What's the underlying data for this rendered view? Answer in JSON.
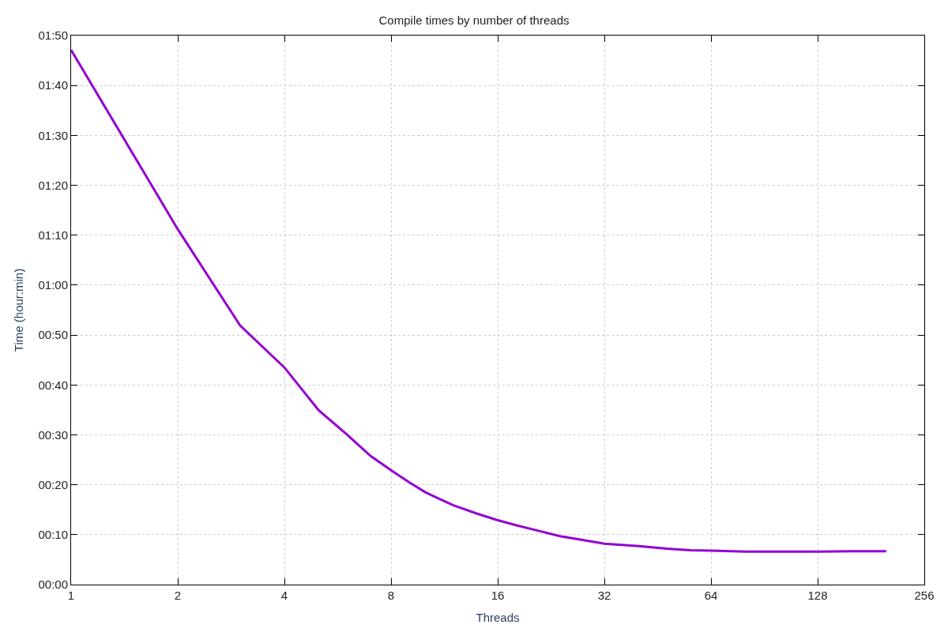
{
  "chart_data": {
    "type": "line",
    "title": "Compile times by number of threads",
    "xlabel": "Threads",
    "ylabel": "Time (hour:min)",
    "x": [
      1,
      2,
      3,
      4,
      5,
      6,
      7,
      8,
      9,
      10,
      11,
      12,
      14,
      16,
      18,
      20,
      24,
      28,
      32,
      40,
      48,
      56,
      64,
      80,
      96,
      128,
      160,
      200
    ],
    "series": [
      {
        "color": "#9400d3",
        "values": [
          107.1,
          71.2,
          51.9,
          43.5,
          34.9,
          30.1,
          25.8,
          22.9,
          20.5,
          18.5,
          17.1,
          15.9,
          14.2,
          12.9,
          11.9,
          11.1,
          9.7,
          8.9,
          8.2,
          7.7,
          7.2,
          6.9,
          6.8,
          6.6,
          6.6,
          6.6,
          6.7,
          6.7
        ]
      }
    ],
    "log": "x",
    "xlim": [
      1,
      256
    ],
    "xticks": [
      1,
      2,
      4,
      8,
      16,
      32,
      64,
      128,
      256
    ],
    "ylim": [
      0,
      110
    ],
    "yticks": [
      {
        "value": 0,
        "label": "00:00"
      },
      {
        "value": 10,
        "label": "00:10"
      },
      {
        "value": 20,
        "label": "00:20"
      },
      {
        "value": 30,
        "label": "00:30"
      },
      {
        "value": 40,
        "label": "00:40"
      },
      {
        "value": 50,
        "label": "00:50"
      },
      {
        "value": 60,
        "label": "01:00"
      },
      {
        "value": 70,
        "label": "01:10"
      },
      {
        "value": 80,
        "label": "01:20"
      },
      {
        "value": 90,
        "label": "01:30"
      },
      {
        "value": 100,
        "label": "01:40"
      },
      {
        "value": 110,
        "label": "01:50"
      }
    ],
    "grid": true,
    "legend": false,
    "marker": "none",
    "line_style": "solid"
  }
}
